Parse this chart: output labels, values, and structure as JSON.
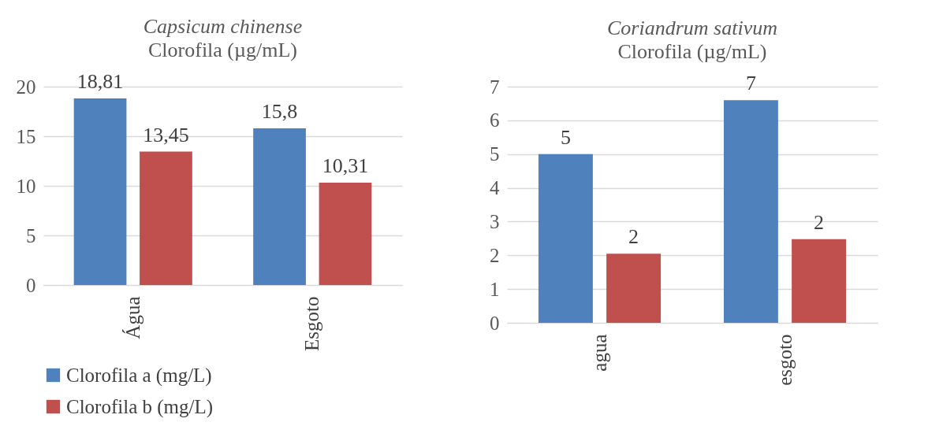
{
  "chart_data": [
    {
      "type": "bar",
      "title": "Capsicum chinense",
      "subtitle": "Clorofila (µg/mL)",
      "categories": [
        "Água",
        "Esgoto"
      ],
      "series": [
        {
          "name": "Clorofila a (mg/L)",
          "color": "#4f81bd",
          "values": [
            18.81,
            15.8
          ],
          "value_labels": [
            "18,81",
            "15,8"
          ]
        },
        {
          "name": "Clorofila b (mg/L)",
          "color": "#c0504d",
          "values": [
            13.45,
            10.31
          ],
          "value_labels": [
            "13,45",
            "10,31"
          ]
        }
      ],
      "ylim": [
        0,
        20
      ],
      "yticks": [
        0,
        5,
        10,
        15,
        20
      ],
      "grid": "y",
      "legend": "bottom"
    },
    {
      "type": "bar",
      "title": "Coriandrum sativum",
      "subtitle": "Clorofila (µg/mL)",
      "categories": [
        "agua",
        "esgoto"
      ],
      "series": [
        {
          "color": "#4f81bd",
          "values": [
            5.0,
            6.6
          ],
          "value_labels": [
            "5",
            "7"
          ]
        },
        {
          "color": "#c0504d",
          "values": [
            2.05,
            2.48
          ],
          "value_labels": [
            "2",
            "2"
          ]
        }
      ],
      "ylim": [
        0,
        7
      ],
      "yticks": [
        0,
        1,
        2,
        3,
        4,
        5,
        6,
        7
      ],
      "grid": "y"
    }
  ]
}
